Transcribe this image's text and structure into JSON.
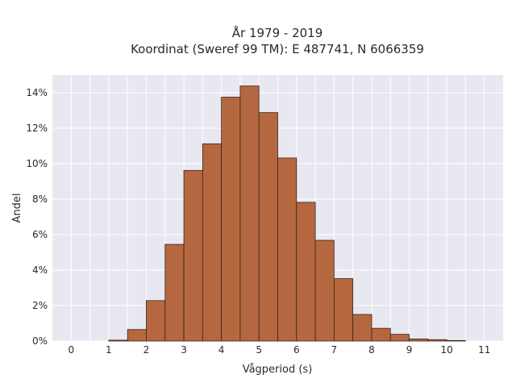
{
  "chart_data": {
    "type": "bar",
    "title_lines": [
      "År 1979 - 2019",
      "Koordinat (Sweref 99 TM): E 487741, N 6066359"
    ],
    "xlabel": "Vågperiod (s)",
    "ylabel": "Andel",
    "xlim": [
      -0.5,
      11.5
    ],
    "ylim": [
      0,
      0.15
    ],
    "bin_width": 0.5,
    "x_ticks": [
      0,
      1,
      2,
      3,
      4,
      5,
      6,
      7,
      8,
      9,
      10,
      11
    ],
    "x_tick_labels": [
      "0",
      "1",
      "2",
      "3",
      "4",
      "5",
      "6",
      "7",
      "8",
      "9",
      "10",
      "11"
    ],
    "y_ticks": [
      0,
      0.02,
      0.04,
      0.06,
      0.08,
      0.1,
      0.12,
      0.14
    ],
    "y_tick_labels": [
      "0%",
      "2%",
      "4%",
      "6%",
      "8%",
      "10%",
      "12%",
      "14%"
    ],
    "bin_edges": [
      1.0,
      1.5,
      2.0,
      2.5,
      3.0,
      3.5,
      4.0,
      4.5,
      5.0,
      5.5,
      6.0,
      6.5,
      7.0,
      7.5,
      8.0,
      8.5,
      9.0,
      9.5,
      10.0,
      10.5
    ],
    "values": [
      0.0005,
      0.0065,
      0.0228,
      0.0545,
      0.0962,
      0.1112,
      0.1375,
      0.1438,
      0.1288,
      0.1032,
      0.0782,
      0.0568,
      0.0352,
      0.015,
      0.0072,
      0.0038,
      0.0012,
      0.0008,
      0.0003
    ],
    "grid": true,
    "bar_color": "#b5683f",
    "bar_edge_color": "#3b2418",
    "plot_background": "#e8e8f1",
    "grid_color": "#ffffff"
  }
}
